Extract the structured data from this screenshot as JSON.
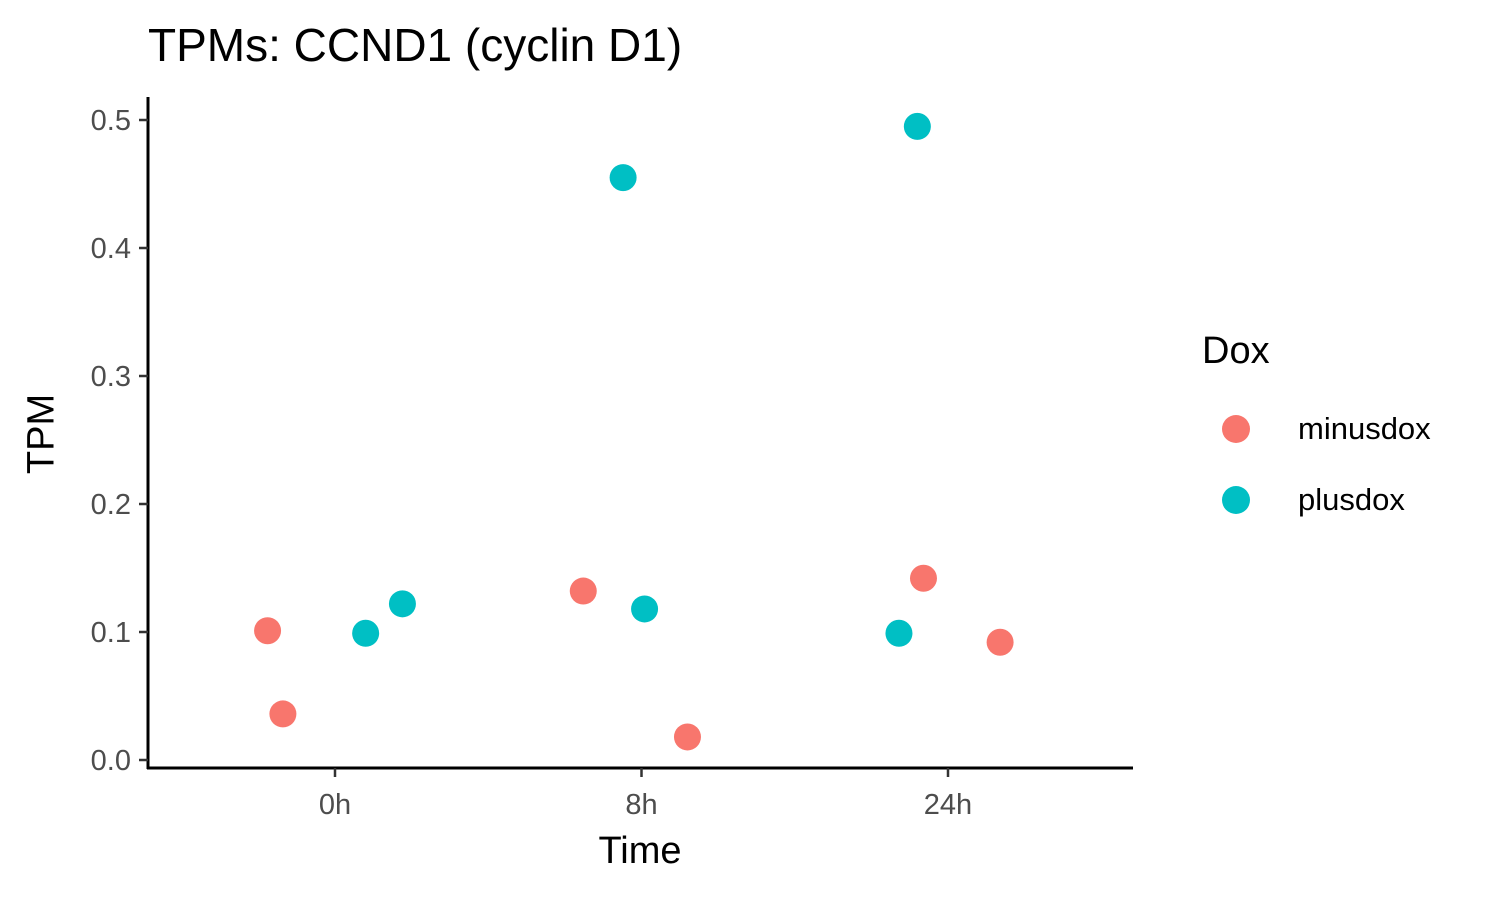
{
  "chart_data": {
    "type": "scatter",
    "title": "TPMs: CCND1 (cyclin D1)",
    "xlabel": "Time",
    "ylabel": "TPM",
    "categories": [
      "0h",
      "8h",
      "24h"
    ],
    "ylim": [
      -0.005,
      0.52
    ],
    "yticks": [
      "0.0",
      "0.1",
      "0.2",
      "0.3",
      "0.4",
      "0.5"
    ],
    "ytick_values": [
      0.0,
      0.1,
      0.2,
      0.3,
      0.4,
      0.5
    ],
    "grid": false,
    "legend": {
      "title": "Dox",
      "position": "right"
    },
    "series": [
      {
        "name": "minusdox",
        "color": "#F8766D",
        "points": [
          {
            "x": "0h",
            "jitter": -0.22,
            "y": 0.101
          },
          {
            "x": "0h",
            "jitter": -0.17,
            "y": 0.036
          },
          {
            "x": "8h",
            "jitter": -0.19,
            "y": 0.132
          },
          {
            "x": "8h",
            "jitter": 0.15,
            "y": 0.018
          },
          {
            "x": "24h",
            "jitter": -0.08,
            "y": 0.142
          },
          {
            "x": "24h",
            "jitter": 0.17,
            "y": 0.092
          }
        ]
      },
      {
        "name": "plusdox",
        "color": "#00BFC4",
        "points": [
          {
            "x": "0h",
            "jitter": 0.1,
            "y": 0.099
          },
          {
            "x": "0h",
            "jitter": 0.22,
            "y": 0.122
          },
          {
            "x": "8h",
            "jitter": -0.06,
            "y": 0.455
          },
          {
            "x": "8h",
            "jitter": 0.01,
            "y": 0.118
          },
          {
            "x": "24h",
            "jitter": -0.1,
            "y": 0.495
          },
          {
            "x": "24h",
            "jitter": -0.16,
            "y": 0.099
          }
        ]
      }
    ]
  }
}
